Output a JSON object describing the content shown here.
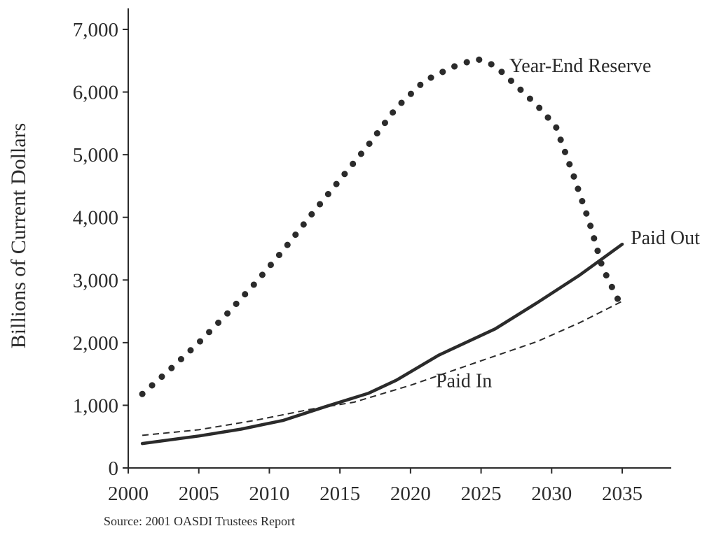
{
  "chart_data": {
    "type": "line",
    "title": "",
    "xlabel": "",
    "ylabel": "Billions of Current Dollars",
    "xlim": [
      2000,
      2038
    ],
    "ylim": [
      0,
      7000
    ],
    "x_ticks": [
      2000,
      2005,
      2010,
      2015,
      2020,
      2025,
      2030,
      2035
    ],
    "x_tick_labels": [
      "2000",
      "2005",
      "2010",
      "2015",
      "2020",
      "2025",
      "2030",
      "2035"
    ],
    "y_ticks": [
      0,
      1000,
      2000,
      3000,
      4000,
      5000,
      6000,
      7000
    ],
    "y_tick_labels": [
      "0",
      "1,000",
      "2,000",
      "3,000",
      "4,000",
      "5,000",
      "6,000",
      "7,000"
    ],
    "grid": false,
    "legend": "none (series labelled directly on the chart)",
    "series": [
      {
        "name": "Year-End Reserve",
        "style": "dotted",
        "color": "#2b2b2b",
        "label_anchor_x": 2027,
        "label_anchor_y": 6320,
        "points": [
          [
            2001,
            1180
          ],
          [
            2003,
            1580
          ],
          [
            2005,
            2000
          ],
          [
            2007,
            2460
          ],
          [
            2009,
            2950
          ],
          [
            2011,
            3480
          ],
          [
            2013,
            4050
          ],
          [
            2015,
            4600
          ],
          [
            2017,
            5150
          ],
          [
            2019,
            5750
          ],
          [
            2021,
            6180
          ],
          [
            2023,
            6400
          ],
          [
            2024.7,
            6530
          ],
          [
            2026,
            6420
          ],
          [
            2027.5,
            6100
          ],
          [
            2029,
            5780
          ],
          [
            2030.3,
            5450
          ],
          [
            2031.5,
            4700
          ],
          [
            2032.7,
            3900
          ],
          [
            2033.6,
            3200
          ],
          [
            2035,
            2550
          ]
        ]
      },
      {
        "name": "Paid Out",
        "style": "solid",
        "color": "#2b2b2b",
        "label_anchor_x": 2035.6,
        "label_anchor_y": 3570,
        "points": [
          [
            2001,
            390
          ],
          [
            2005,
            510
          ],
          [
            2008,
            620
          ],
          [
            2011,
            760
          ],
          [
            2014,
            980
          ],
          [
            2017,
            1190
          ],
          [
            2019,
            1400
          ],
          [
            2022,
            1800
          ],
          [
            2026,
            2220
          ],
          [
            2029,
            2640
          ],
          [
            2032,
            3080
          ],
          [
            2035,
            3570
          ]
        ]
      },
      {
        "name": "Paid In",
        "style": "dashed",
        "color": "#2b2b2b",
        "label_anchor_x": 2021.8,
        "label_anchor_y": 1290,
        "points": [
          [
            2001,
            520
          ],
          [
            2005,
            610
          ],
          [
            2009,
            760
          ],
          [
            2013,
            940
          ],
          [
            2016,
            1050
          ],
          [
            2020,
            1320
          ],
          [
            2025,
            1710
          ],
          [
            2029,
            2020
          ],
          [
            2032,
            2320
          ],
          [
            2035,
            2660
          ]
        ]
      }
    ]
  },
  "source": "Source: 2001 OASDI Trustees Report"
}
